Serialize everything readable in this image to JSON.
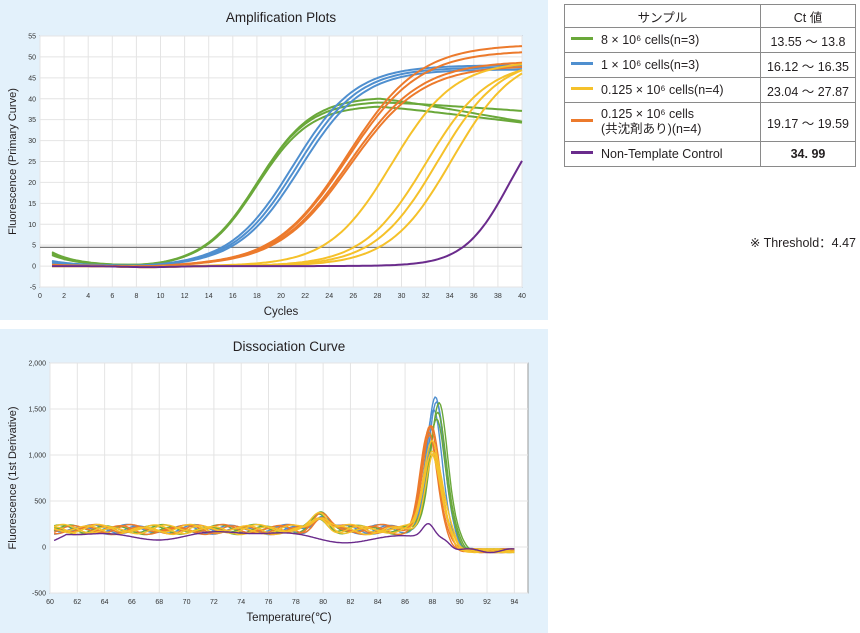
{
  "colors": {
    "green": "#6aa83a",
    "blue": "#4f8fcf",
    "yellow": "#f5c12a",
    "orange": "#ec7a2c",
    "purple": "#6a2b8c",
    "threshold": "#7a7a7a"
  },
  "legend": {
    "header_sample": "サンプル",
    "header_ct": "Ct 値",
    "rows": [
      {
        "color": "green",
        "label": "8 × 10⁶ cells(n=3)",
        "ct": "13.55 ～ 13.8"
      },
      {
        "color": "blue",
        "label": "1 × 10⁶ cells(n=3)",
        "ct": "16.12 ～ 16.35"
      },
      {
        "color": "yellow",
        "label": "0.125 × 10⁶ cells(n=4)",
        "ct": "23.04 ～ 27.87"
      },
      {
        "color": "orange",
        "label": "0.125 × 10⁶ cells",
        "label2": "(共沈剤あり)(n=4)",
        "ct": "19.17 ～ 19.59"
      },
      {
        "color": "purple",
        "label": "Non-Template Control",
        "ct": "34. 99"
      }
    ],
    "note": "※ Threshold：4.47"
  },
  "chart_data": [
    {
      "type": "line",
      "title": "Amplification Plots",
      "xlabel": "Cycles",
      "ylabel": "Fluorescence (Primary Curve)",
      "xlim": [
        0,
        40
      ],
      "ylim": [
        -5,
        55
      ],
      "xticks": [
        "0",
        "2",
        "4",
        "6",
        "8",
        "10",
        "12",
        "14",
        "16",
        "18",
        "20",
        "22",
        "24",
        "26",
        "28",
        "30",
        "32",
        "34",
        "36",
        "38",
        "40"
      ],
      "yticks": [
        "-5",
        "0",
        "5",
        "10",
        "15",
        "20",
        "25",
        "30",
        "35",
        "40",
        "45",
        "50",
        "55"
      ],
      "threshold": 4.47,
      "grid": true,
      "series": [
        {
          "color": "green",
          "curves": [
            {
              "plateau": 38.5,
              "mid": 18.0,
              "slope": 2.2,
              "start": 3.3,
              "droop": 0.35
            },
            {
              "plateau": 39.5,
              "mid": 18.0,
              "slope": 2.2,
              "start": 3.0,
              "droop": 0.2
            },
            {
              "plateau": 40.5,
              "mid": 18.1,
              "slope": 2.25,
              "start": 2.6,
              "droop": 0.5
            }
          ]
        },
        {
          "color": "blue",
          "curves": [
            {
              "plateau": 48.0,
              "mid": 21.0,
              "slope": 2.6,
              "start": 1.2,
              "droop": 0
            },
            {
              "plateau": 47.5,
              "mid": 21.3,
              "slope": 2.6,
              "start": 0.9,
              "droop": 0
            },
            {
              "plateau": 47.0,
              "mid": 21.6,
              "slope": 2.6,
              "start": 0.6,
              "droop": 0
            }
          ]
        },
        {
          "color": "orange",
          "curves": [
            {
              "plateau": 53.0,
              "mid": 25.5,
              "slope": 3.0,
              "start": 0.3,
              "droop": 0
            },
            {
              "plateau": 51.5,
              "mid": 25.5,
              "slope": 3.0,
              "start": 0.2,
              "droop": 0
            },
            {
              "plateau": 49.0,
              "mid": 25.6,
              "slope": 3.0,
              "start": 0.1,
              "droop": 0
            },
            {
              "plateau": 48.0,
              "mid": 25.7,
              "slope": 3.0,
              "start": 0.0,
              "droop": 0
            }
          ]
        },
        {
          "color": "yellow",
          "curves": [
            {
              "plateau": 49.0,
              "mid": 29.2,
              "slope": 2.6,
              "start": 0,
              "droop": 0
            },
            {
              "plateau": 49.0,
              "mid": 32.0,
              "slope": 2.6,
              "start": 0,
              "droop": 0
            },
            {
              "plateau": 50.0,
              "mid": 33.0,
              "slope": 2.6,
              "start": 0,
              "droop": 0
            },
            {
              "plateau": 51.0,
              "mid": 34.2,
              "slope": 2.6,
              "start": 0,
              "droop": 0
            }
          ]
        },
        {
          "color": "purple",
          "curves": [
            {
              "plateau": 40.0,
              "mid": 39.0,
              "slope": 1.9,
              "start": 0,
              "droop": 0
            }
          ]
        }
      ]
    },
    {
      "type": "line",
      "title": "Dissociation Curve",
      "xlabel": "Temperature(℃)",
      "ylabel": "Fluorescence (1st Derivative)",
      "xlim": [
        60,
        95
      ],
      "ylim": [
        -500,
        2000
      ],
      "xticks": [
        "60",
        "62",
        "64",
        "66",
        "68",
        "70",
        "72",
        "74",
        "76",
        "78",
        "80",
        "82",
        "84",
        "86",
        "88",
        "90",
        "92",
        "94"
      ],
      "yticks": [
        "-500",
        "0",
        "500",
        "1,000",
        "1,500",
        "2,000"
      ],
      "grid": true,
      "series": [
        {
          "color": "blue",
          "curves": [
            {
              "peakT": 88.2,
              "peak": 1420,
              "width": 0.85
            },
            {
              "peakT": 88.3,
              "peak": 1350,
              "width": 0.85
            },
            {
              "peakT": 88.1,
              "peak": 1290,
              "width": 0.85
            }
          ]
        },
        {
          "color": "green",
          "curves": [
            {
              "peakT": 88.5,
              "peak": 1380,
              "width": 0.85
            },
            {
              "peakT": 88.4,
              "peak": 1300,
              "width": 0.85
            },
            {
              "peakT": 88.3,
              "peak": 1250,
              "width": 0.85
            }
          ]
        },
        {
          "color": "orange",
          "curves": [
            {
              "peakT": 87.8,
              "peak": 1150,
              "width": 0.85
            },
            {
              "peakT": 87.9,
              "peak": 1100,
              "width": 0.85
            },
            {
              "peakT": 87.7,
              "peak": 1050,
              "width": 0.85
            },
            {
              "peakT": 87.8,
              "peak": 1000,
              "width": 0.85
            }
          ]
        },
        {
          "color": "yellow",
          "curves": [
            {
              "peakT": 88.0,
              "peak": 960,
              "width": 0.85
            },
            {
              "peakT": 88.0,
              "peak": 900,
              "width": 0.85
            },
            {
              "peakT": 88.1,
              "peak": 860,
              "width": 0.85
            },
            {
              "peakT": 87.9,
              "peak": 800,
              "width": 0.85
            }
          ]
        },
        {
          "color": "purple",
          "curves": [
            {
              "peakT": 87.7,
              "peak": 150,
              "width": 0.6,
              "low": true
            }
          ]
        }
      ]
    }
  ]
}
